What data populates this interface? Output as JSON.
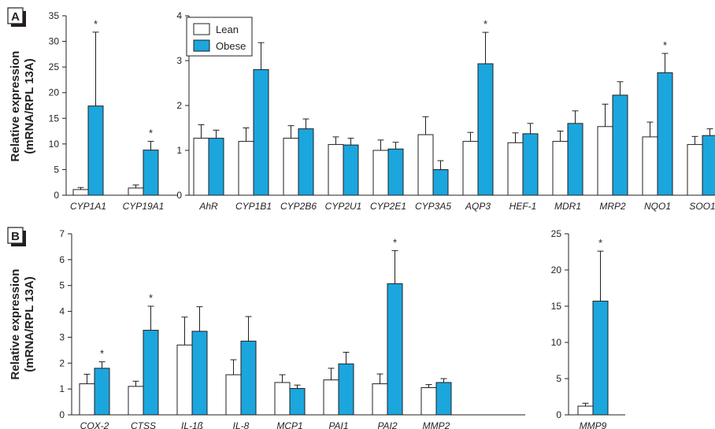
{
  "colors": {
    "lean": "#ffffff",
    "obese": "#1ba6de",
    "axis": "#231f20",
    "panel_label_shadow": "#231f20"
  },
  "y_axis_label_line1": "Relative expression",
  "y_axis_label_line2": "(mRNA/RPL 13A)",
  "legend": {
    "lean": "Lean",
    "obese": "Obese"
  },
  "chart_data": [
    {
      "id": "A-left",
      "panel": "A",
      "type": "bar",
      "categories": [
        "CYP1A1",
        "CYP19A1"
      ],
      "series": [
        {
          "name": "Lean",
          "values": [
            1.1,
            1.4
          ],
          "errors": [
            0.4,
            0.6
          ]
        },
        {
          "name": "Obese",
          "values": [
            17.4,
            8.8
          ],
          "errors": [
            14.4,
            1.7
          ]
        }
      ],
      "significant": [
        true,
        true
      ],
      "ylim": [
        0,
        35
      ],
      "yticks": [
        0,
        5,
        10,
        15,
        20,
        25,
        30,
        35
      ]
    },
    {
      "id": "A-right",
      "panel": "A",
      "type": "bar",
      "categories": [
        "AhR",
        "CYP1B1",
        "CYP2B6",
        "CYP2U1",
        "CYP2E1",
        "CYP3A5",
        "AQP3",
        "HEF-1",
        "MDR1",
        "MRP2",
        "NQO1",
        "SOO1"
      ],
      "series": [
        {
          "name": "Lean",
          "values": [
            1.27,
            1.2,
            1.27,
            1.13,
            1.0,
            1.35,
            1.2,
            1.17,
            1.2,
            1.53,
            1.3,
            1.13
          ],
          "errors": [
            0.3,
            0.3,
            0.28,
            0.17,
            0.23,
            0.4,
            0.2,
            0.22,
            0.23,
            0.5,
            0.33,
            0.18
          ]
        },
        {
          "name": "Obese",
          "values": [
            1.27,
            2.8,
            1.48,
            1.12,
            1.03,
            0.57,
            2.93,
            1.37,
            1.6,
            2.23,
            2.73,
            1.33
          ],
          "errors": [
            0.18,
            0.6,
            0.22,
            0.15,
            0.15,
            0.2,
            0.7,
            0.23,
            0.28,
            0.3,
            0.43,
            0.15
          ]
        }
      ],
      "significant": [
        false,
        false,
        false,
        false,
        false,
        false,
        true,
        false,
        false,
        false,
        true,
        false
      ],
      "ylim": [
        0,
        4
      ],
      "yticks": [
        0,
        1,
        2,
        3,
        4
      ]
    },
    {
      "id": "B-left",
      "panel": "B",
      "type": "bar",
      "categories": [
        "COX-2",
        "CTSS",
        "IL-1ß",
        "IL-8",
        "MCP1",
        "PAI1",
        "PAI2",
        "MMP2"
      ],
      "series": [
        {
          "name": "Lean",
          "values": [
            1.2,
            1.1,
            2.7,
            1.55,
            1.25,
            1.35,
            1.2,
            1.05
          ],
          "errors": [
            0.37,
            0.2,
            1.08,
            0.58,
            0.3,
            0.45,
            0.38,
            0.12
          ]
        },
        {
          "name": "Obese",
          "values": [
            1.8,
            3.27,
            3.23,
            2.85,
            1.02,
            1.97,
            5.07,
            1.25
          ],
          "errors": [
            0.25,
            0.93,
            0.95,
            0.95,
            0.13,
            0.45,
            1.28,
            0.15
          ]
        }
      ],
      "significant": [
        true,
        true,
        false,
        false,
        false,
        false,
        true,
        false
      ],
      "ylim": [
        0,
        7
      ],
      "yticks": [
        0,
        1,
        2,
        3,
        4,
        5,
        6,
        7
      ]
    },
    {
      "id": "B-right",
      "panel": "B",
      "type": "bar",
      "categories": [
        "MMP9"
      ],
      "series": [
        {
          "name": "Lean",
          "values": [
            1.2
          ],
          "errors": [
            0.4
          ]
        },
        {
          "name": "Obese",
          "values": [
            15.7
          ],
          "errors": [
            6.9
          ]
        }
      ],
      "significant": [
        true
      ],
      "ylim": [
        0,
        25
      ],
      "yticks": [
        0,
        5,
        10,
        15,
        20,
        25
      ]
    }
  ]
}
